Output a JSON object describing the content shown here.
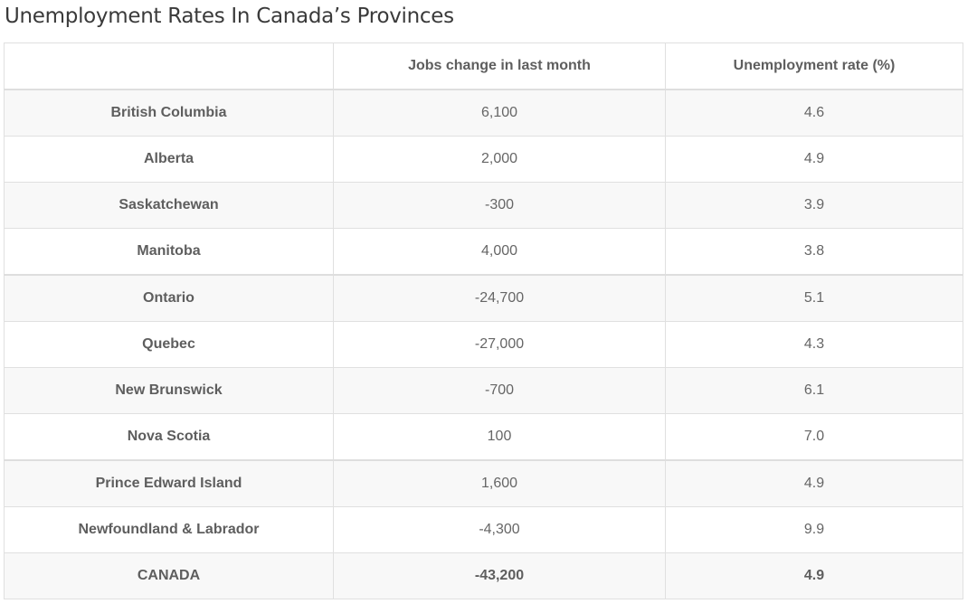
{
  "page": {
    "title": "Unemployment Rates In Canada’s Provinces"
  },
  "chart_data": {
    "type": "table",
    "columns": [
      "",
      "Jobs change in last month",
      "Unemployment rate (%)"
    ],
    "rows": [
      {
        "province": "British Columbia",
        "jobs_change": "6,100",
        "unemployment_rate": "4.6"
      },
      {
        "province": "Alberta",
        "jobs_change": "2,000",
        "unemployment_rate": "4.9"
      },
      {
        "province": "Saskatchewan",
        "jobs_change": "-300",
        "unemployment_rate": "3.9"
      },
      {
        "province": "Manitoba",
        "jobs_change": "4,000",
        "unemployment_rate": "3.8"
      },
      {
        "province": "Ontario",
        "jobs_change": "-24,700",
        "unemployment_rate": "5.1"
      },
      {
        "province": "Quebec",
        "jobs_change": "-27,000",
        "unemployment_rate": "4.3"
      },
      {
        "province": "New Brunswick",
        "jobs_change": "-700",
        "unemployment_rate": "6.1"
      },
      {
        "province": "Nova Scotia",
        "jobs_change": "100",
        "unemployment_rate": "7.0"
      },
      {
        "province": "Prince Edward Island",
        "jobs_change": "1,600",
        "unemployment_rate": "4.9"
      },
      {
        "province": "Newfoundland & Labrador",
        "jobs_change": "-4,300",
        "unemployment_rate": "9.9"
      },
      {
        "province": "CANADA",
        "jobs_change": "-43,200",
        "unemployment_rate": "4.9"
      }
    ]
  }
}
